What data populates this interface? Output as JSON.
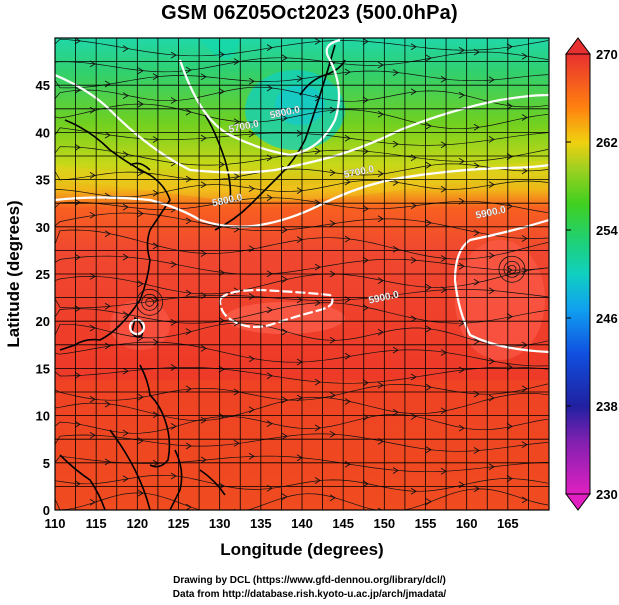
{
  "title": "GSM 06Z05Oct2023 (500.0hPa)",
  "chart_data": {
    "type": "heatmap",
    "title": "GSM 06Z05Oct2023 (500.0hPa)",
    "xlabel": "Longitude (degrees)",
    "ylabel": "Latitude  (degrees)",
    "xlim": [
      110,
      170
    ],
    "ylim": [
      0,
      50
    ],
    "x_ticks": [
      110,
      115,
      120,
      125,
      130,
      135,
      140,
      145,
      150,
      155,
      160,
      165
    ],
    "y_ticks": [
      0,
      5,
      10,
      15,
      20,
      25,
      30,
      35,
      40,
      45
    ],
    "grid": true,
    "colorbar": {
      "placement": "right",
      "ticks": [
        230,
        238,
        246,
        254,
        262,
        270
      ],
      "range": [
        230,
        270
      ],
      "colors": [
        "#e020c0",
        "#2020a0",
        "#1060f0",
        "#10c0e0",
        "#20d080",
        "#40d020",
        "#90d020",
        "#e0d010",
        "#ff8010",
        "#ff4020",
        "#e83030"
      ]
    },
    "contour_labels": [
      {
        "text": "5700.0",
        "lon": 133,
        "lat": 40.3
      },
      {
        "text": "5800.0",
        "lon": 138,
        "lat": 41.8
      },
      {
        "text": "5700.0",
        "lon": 147,
        "lat": 35.5
      },
      {
        "text": "5800.0",
        "lon": 131,
        "lat": 32.5
      },
      {
        "text": "5900.0",
        "lon": 150,
        "lat": 22.2
      },
      {
        "text": "5900.0",
        "lon": 163,
        "lat": 31.2
      }
    ],
    "vortices": [
      {
        "lon": 121.5,
        "lat": 22.0
      },
      {
        "lon": 165.5,
        "lat": 25.5
      }
    ]
  },
  "credits": {
    "line1": "Drawing by DCL (https://www.gfd-dennou.org/library/dcl/)",
    "line2": "Data from http://database.rish.kyoto-u.ac.jp/arch/jmadata/"
  },
  "icons": {
    "cbar_top": "triangle-up-icon",
    "cbar_bottom": "triangle-down-icon"
  }
}
